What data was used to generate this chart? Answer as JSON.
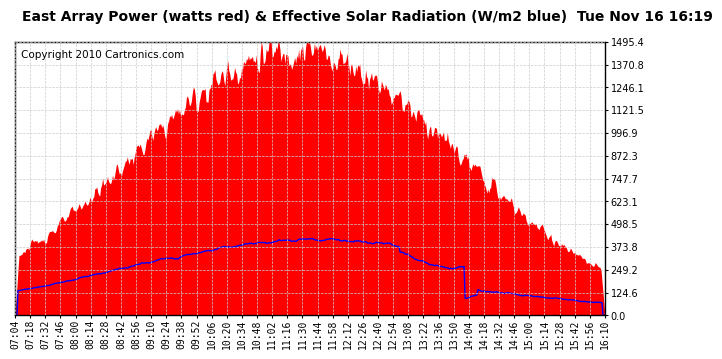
{
  "title": "East Array Power (watts red) & Effective Solar Radiation (W/m2 blue)  Tue Nov 16 16:19",
  "copyright": "Copyright 2010 Cartronics.com",
  "ymax": 1495.4,
  "ymin": 0.0,
  "yticks": [
    0.0,
    124.6,
    249.2,
    373.8,
    498.5,
    623.1,
    747.7,
    872.3,
    996.9,
    1121.5,
    1246.1,
    1370.8,
    1495.4
  ],
  "xtick_labels": [
    "07:04",
    "07:18",
    "07:32",
    "07:46",
    "08:00",
    "08:14",
    "08:28",
    "08:42",
    "08:56",
    "09:10",
    "09:24",
    "09:38",
    "09:52",
    "10:06",
    "10:20",
    "10:34",
    "10:48",
    "11:02",
    "11:16",
    "11:30",
    "11:44",
    "11:58",
    "12:12",
    "12:26",
    "12:40",
    "12:54",
    "13:08",
    "13:22",
    "13:36",
    "13:50",
    "14:04",
    "14:18",
    "14:32",
    "14:46",
    "15:00",
    "15:14",
    "15:28",
    "15:42",
    "15:56",
    "16:10"
  ],
  "fill_color": "#FF0000",
  "line_color": "#0000FF",
  "background_color": "#FFFFFF",
  "grid_color": "#CCCCCC",
  "title_fontsize": 10,
  "copyright_fontsize": 7.5,
  "tick_fontsize": 7,
  "power_peak": 1450,
  "power_sigma_min": 150,
  "radiation_peak": 415,
  "radiation_sigma_min": 185
}
